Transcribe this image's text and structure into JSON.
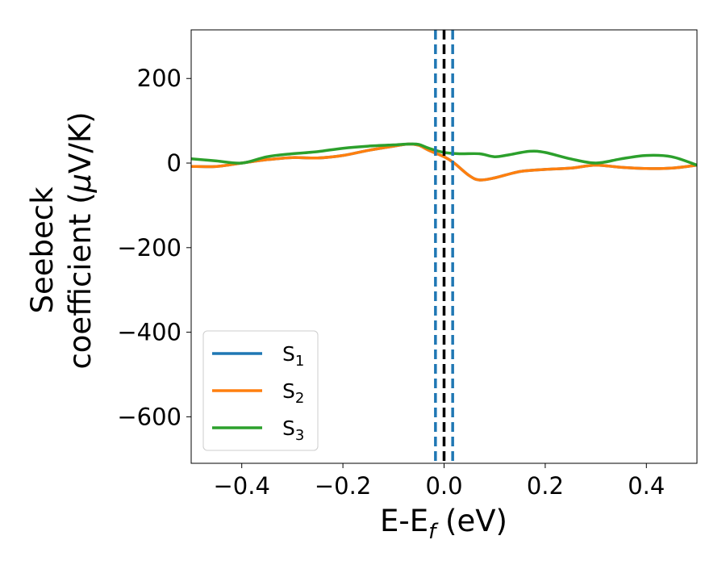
{
  "chart_data": {
    "type": "line",
    "xlabel": "E-E",
    "xlabel_sub": "f",
    "xlabel_unit": " (eV)",
    "ylabel_line1": "Seebeck",
    "ylabel_line2": "coefficient  (",
    "ylabel_mu": "μ",
    "ylabel_unit": "V/K)",
    "xlim": [
      -0.5,
      0.5
    ],
    "ylim": [
      -710,
      315
    ],
    "xticks": [
      -0.4,
      -0.2,
      0.0,
      0.2,
      0.4
    ],
    "xtick_labels": [
      "−0.4",
      "−0.2",
      "0.0",
      "0.2",
      "0.4"
    ],
    "yticks": [
      200,
      0,
      -200,
      -400,
      -600
    ],
    "ytick_labels": [
      "200",
      "0",
      "−200",
      "−400",
      "−600"
    ],
    "grid": false,
    "legend_position": "lower-left",
    "vertical_lines": [
      {
        "x": -0.017,
        "style": "dashed",
        "color": "#1f77b4"
      },
      {
        "x": 0.0,
        "style": "dashed",
        "color": "#000000"
      },
      {
        "x": 0.017,
        "style": "dashed",
        "color": "#1f77b4"
      }
    ],
    "series": [
      {
        "name": "S",
        "sub": "1",
        "color": "#1f77b4",
        "x": [
          -0.5,
          -0.45,
          -0.4,
          -0.35,
          -0.3,
          -0.25,
          -0.2,
          -0.15,
          -0.1,
          -0.07,
          -0.05,
          -0.03,
          0.0,
          0.02,
          0.05,
          0.07,
          0.1,
          0.15,
          0.2,
          0.25,
          0.3,
          0.35,
          0.4,
          0.45,
          0.5
        ],
        "y": [
          -8,
          -8,
          0,
          8,
          13,
          12,
          18,
          30,
          40,
          45,
          42,
          30,
          15,
          0,
          -30,
          -40,
          -35,
          -20,
          -15,
          -12,
          -5,
          -10,
          -13,
          -12,
          -5
        ]
      },
      {
        "name": "S",
        "sub": "2",
        "color": "#ff7f0e",
        "x": [
          -0.5,
          -0.45,
          -0.4,
          -0.35,
          -0.3,
          -0.25,
          -0.2,
          -0.15,
          -0.1,
          -0.07,
          -0.05,
          -0.03,
          0.0,
          0.02,
          0.05,
          0.07,
          0.1,
          0.15,
          0.2,
          0.25,
          0.3,
          0.35,
          0.4,
          0.45,
          0.5
        ],
        "y": [
          -8,
          -8,
          0,
          8,
          13,
          12,
          18,
          30,
          40,
          45,
          42,
          30,
          15,
          0,
          -30,
          -40,
          -35,
          -20,
          -15,
          -12,
          -5,
          -10,
          -13,
          -12,
          -5
        ]
      },
      {
        "name": "S",
        "sub": "3",
        "color": "#2ca02c",
        "x": [
          -0.5,
          -0.45,
          -0.4,
          -0.35,
          -0.3,
          -0.25,
          -0.2,
          -0.15,
          -0.1,
          -0.07,
          -0.05,
          -0.03,
          0.0,
          0.03,
          0.07,
          0.1,
          0.13,
          0.17,
          0.2,
          0.25,
          0.3,
          0.35,
          0.4,
          0.45,
          0.5
        ],
        "y": [
          10,
          5,
          0,
          15,
          22,
          27,
          35,
          40,
          43,
          45,
          44,
          35,
          25,
          22,
          22,
          15,
          20,
          28,
          25,
          10,
          0,
          10,
          18,
          15,
          -5
        ]
      }
    ]
  }
}
